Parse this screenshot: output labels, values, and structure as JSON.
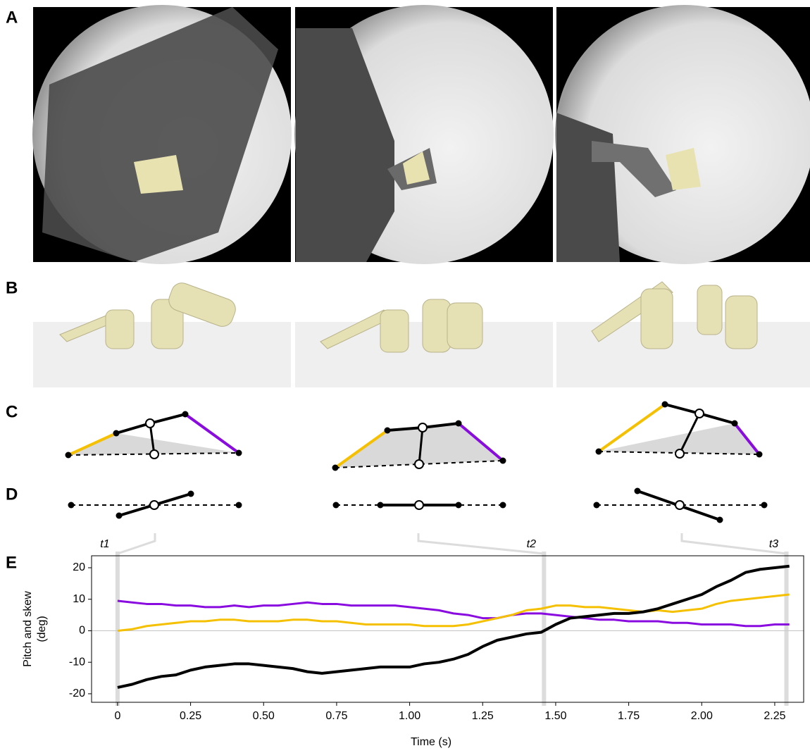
{
  "panel_labels": [
    "A",
    "B",
    "C",
    "D",
    "E"
  ],
  "chart_data": {
    "type": "line",
    "xlabel": "Time (s)",
    "ylabel": [
      "Pitch and skew",
      "(deg)"
    ],
    "x": [
      0,
      0.05,
      0.1,
      0.15,
      0.2,
      0.25,
      0.3,
      0.35,
      0.4,
      0.45,
      0.5,
      0.55,
      0.6,
      0.65,
      0.7,
      0.75,
      0.8,
      0.85,
      0.9,
      0.95,
      1.0,
      1.05,
      1.1,
      1.15,
      1.2,
      1.25,
      1.3,
      1.35,
      1.4,
      1.45,
      1.5,
      1.55,
      1.6,
      1.65,
      1.7,
      1.75,
      1.8,
      1.85,
      1.9,
      1.95,
      2.0,
      2.05,
      2.1,
      2.15,
      2.2,
      2.25,
      2.3
    ],
    "series": [
      {
        "color": "#8a0be0",
        "values": [
          9.5,
          9,
          8.5,
          8.5,
          8,
          8,
          7.5,
          7.5,
          8,
          7.5,
          8,
          8,
          8.5,
          9,
          8.5,
          8.5,
          8,
          8,
          8,
          8,
          7.5,
          7,
          6.5,
          5.5,
          5,
          4,
          4,
          5,
          5.5,
          5.5,
          5,
          4.5,
          4,
          3.5,
          3.5,
          3,
          3,
          3,
          2.5,
          2.5,
          2,
          2,
          2,
          1.5,
          1.5,
          2,
          2
        ]
      },
      {
        "color": "#f5c000",
        "values": [
          0,
          0.5,
          1.5,
          2,
          2.5,
          3,
          3,
          3.5,
          3.5,
          3,
          3,
          3,
          3.5,
          3.5,
          3,
          3,
          2.5,
          2,
          2,
          2,
          2,
          1.5,
          1.5,
          1.5,
          2,
          3,
          4,
          5,
          6.5,
          7,
          8,
          8,
          7.5,
          7.5,
          7,
          6.5,
          6,
          6.5,
          6,
          6.5,
          7,
          8.5,
          9.5,
          10,
          10.5,
          11,
          11.5
        ]
      },
      {
        "color": "#000000",
        "values": [
          -18,
          -17,
          -15.5,
          -14.5,
          -14,
          -12.5,
          -11.5,
          -11,
          -10.5,
          -10.5,
          -11,
          -11.5,
          -12,
          -13,
          -13.5,
          -13,
          -12.5,
          -12,
          -11.5,
          -11.5,
          -11.5,
          -10.5,
          -10,
          -9,
          -7.5,
          -5,
          -3,
          -2,
          -1,
          -0.5,
          2,
          4,
          4.5,
          5,
          5.5,
          5.5,
          6,
          7,
          8.5,
          10,
          11.5,
          14,
          16,
          18.5,
          19.5,
          20,
          20.5
        ]
      }
    ],
    "xlim": [
      -0.089,
      2.349
    ],
    "ylim": [
      -22.7,
      23.8
    ],
    "xticks": [
      0,
      0.25,
      {
        "value": 0.5,
        "label": "0.50"
      },
      0.75,
      {
        "value": 1,
        "label": "1.00"
      },
      1.25,
      {
        "value": 1.5,
        "label": "1.50"
      },
      1.75,
      {
        "value": 2,
        "label": "2.00"
      },
      2.25
    ],
    "yticks": [
      -20,
      -10,
      0,
      10,
      20
    ],
    "markers": [
      {
        "label": "t1",
        "x": 0
      },
      {
        "label": "t2",
        "x": 1.46
      },
      {
        "label": "t3",
        "x": 2.29
      }
    ]
  }
}
